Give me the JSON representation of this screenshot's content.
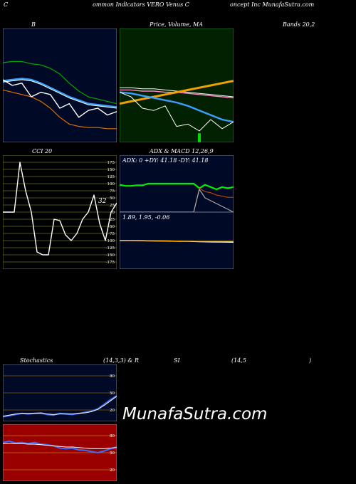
{
  "header": {
    "c1": "C",
    "c2": "ommon  Indicators VERO Venus C",
    "c3": "oncept Inc MunafaSutra.com"
  },
  "row1": {
    "b_label": "B",
    "price_label": "Price, Volume, MA",
    "bands_label": "Bands 20,2"
  },
  "row2": {
    "cci_label": "CCI 20",
    "adx_label": "ADX  & MACD 12,26,9",
    "adx_values": "ADX: 0  +DY: 41.18  -DY: 41.18",
    "macd_values": "1.89,  1.95,  -0.06"
  },
  "row3": {
    "stoch_label": "Stochastics",
    "stoch_params": "(14,3,3) & R",
    "si_label": "SI",
    "rsi_params": "(14,5",
    "close_paren": ")"
  },
  "watermark": "MunafaSutra.com",
  "colors": {
    "navy": "#000a26",
    "olive": "#6b6b1e",
    "dark_green": "#012101",
    "red_panel": "#9b0000"
  },
  "chart_data": [
    {
      "type": "line",
      "panel": "bollinger",
      "series": [
        {
          "values": [
            70,
            71,
            71,
            69,
            68,
            65,
            60,
            52,
            45,
            40,
            38,
            36,
            34
          ],
          "color": "#00aa00"
        },
        {
          "values": [
            54,
            55,
            56,
            55,
            52,
            48,
            44,
            40,
            37,
            34,
            33,
            32,
            31
          ],
          "color": "#3aa0ff"
        },
        {
          "values": [
            53,
            54,
            55,
            54,
            51,
            47,
            43,
            39,
            36,
            33,
            32,
            31,
            30
          ],
          "color": "#ffffff"
        },
        {
          "values": [
            46,
            44,
            42,
            40,
            36,
            30,
            22,
            16,
            14,
            13,
            13,
            12,
            12
          ],
          "color": "#e07000"
        },
        {
          "values": [
            55,
            50,
            52,
            40,
            44,
            42,
            30,
            34,
            22,
            28,
            30,
            24,
            27
          ],
          "color": "#ffffff"
        }
      ],
      "ylim": [
        0,
        100
      ]
    },
    {
      "type": "line",
      "panel": "price_volume_ma",
      "series": [
        {
          "values": [
            48,
            48,
            47,
            47,
            46,
            45,
            44,
            43,
            42,
            41,
            40
          ],
          "color": "#ffffff"
        },
        {
          "values": [
            46,
            46,
            45,
            45,
            44,
            44,
            43,
            42,
            41,
            40,
            39
          ],
          "color": "#ff88cc"
        },
        {
          "values": [
            34,
            36,
            38,
            40,
            42,
            44,
            46,
            48,
            50,
            52,
            54
          ],
          "color": "#f0a000"
        },
        {
          "values": [
            44,
            43,
            41,
            39,
            37,
            35,
            32,
            28,
            24,
            20,
            18
          ],
          "color": "#3aa0ff"
        },
        {
          "values": [
            44,
            40,
            30,
            28,
            32,
            14,
            16,
            10,
            20,
            12,
            18
          ],
          "color": "#ffffff"
        }
      ],
      "volume": [
        0,
        0,
        0,
        0,
        0,
        0,
        0,
        8,
        0,
        0,
        0
      ],
      "ylim": [
        0,
        100
      ]
    },
    {
      "type": "line",
      "panel": "cci",
      "value_label": "32",
      "ticks": [
        175,
        150,
        125,
        100,
        75,
        50,
        25,
        0,
        -25,
        -50,
        -75,
        -100,
        -125,
        -150,
        -175
      ],
      "series": [
        {
          "name": "CCI",
          "values": [
            0,
            0,
            0,
            175,
            75,
            0,
            -140,
            -150,
            -150,
            -25,
            -30,
            -80,
            -100,
            -75,
            -25,
            0,
            60,
            -40,
            -100,
            0,
            32
          ],
          "color": "#ffffff"
        }
      ],
      "ylim": [
        -200,
        200
      ]
    },
    {
      "type": "line",
      "panel": "adx",
      "series": [
        {
          "values": [
            48,
            46,
            46,
            47,
            47,
            50,
            50,
            50,
            50,
            50,
            50,
            50,
            50,
            50,
            42,
            48,
            44,
            40,
            44,
            42,
            44
          ],
          "color": "#00ee00"
        },
        {
          "values": [
            0,
            0,
            0,
            0,
            0,
            0,
            0,
            0,
            0,
            0,
            0,
            0,
            0,
            0,
            42,
            36,
            34,
            30,
            28,
            26,
            26
          ],
          "color": "#d05000"
        },
        {
          "values": [
            0,
            0,
            0,
            0,
            0,
            0,
            0,
            0,
            0,
            0,
            0,
            0,
            0,
            0,
            40,
            25,
            20,
            15,
            10,
            5,
            0
          ],
          "color": "#aaaaaa"
        }
      ],
      "ylim": [
        0,
        100
      ]
    },
    {
      "type": "line",
      "panel": "macd",
      "series": [
        {
          "values": [
            2.0,
            2.0,
            1.99,
            1.98,
            1.97,
            1.96,
            1.95,
            1.93,
            1.91,
            1.9,
            1.89
          ],
          "color": "#ffffff"
        },
        {
          "values": [
            2.02,
            2.01,
            2.0,
            1.99,
            1.98,
            1.97,
            1.96,
            1.95,
            1.95,
            1.95,
            1.95
          ],
          "color": "#f0a000"
        }
      ],
      "ylim": [
        0,
        4
      ]
    },
    {
      "type": "line",
      "panel": "stochastics",
      "ticks": [
        80,
        50,
        20
      ],
      "series": [
        {
          "values": [
            8,
            10,
            12,
            14,
            13,
            14,
            15,
            12,
            11,
            14,
            13,
            12,
            14,
            16,
            18,
            22,
            30,
            38,
            45
          ],
          "color": "#3a6cff"
        },
        {
          "values": [
            9,
            11,
            13,
            14,
            14,
            14,
            14,
            13,
            12,
            13,
            13,
            13,
            14,
            15,
            17,
            21,
            28,
            36,
            44
          ],
          "color": "#ffffff"
        }
      ],
      "ylim": [
        0,
        100
      ]
    },
    {
      "type": "line",
      "panel": "rsi",
      "ticks": [
        80,
        50,
        20
      ],
      "series": [
        {
          "values": [
            68,
            70,
            67,
            68,
            66,
            68,
            65,
            64,
            62,
            58,
            57,
            58,
            55,
            54,
            52,
            50,
            53,
            57,
            60
          ],
          "color": "#3a6cff"
        },
        {
          "values": [
            66,
            66,
            66,
            66,
            65,
            65,
            64,
            63,
            62,
            61,
            60,
            60,
            59,
            58,
            57,
            57,
            57,
            58,
            59
          ],
          "color": "#ffffff"
        }
      ],
      "ylim": [
        0,
        100
      ]
    }
  ]
}
